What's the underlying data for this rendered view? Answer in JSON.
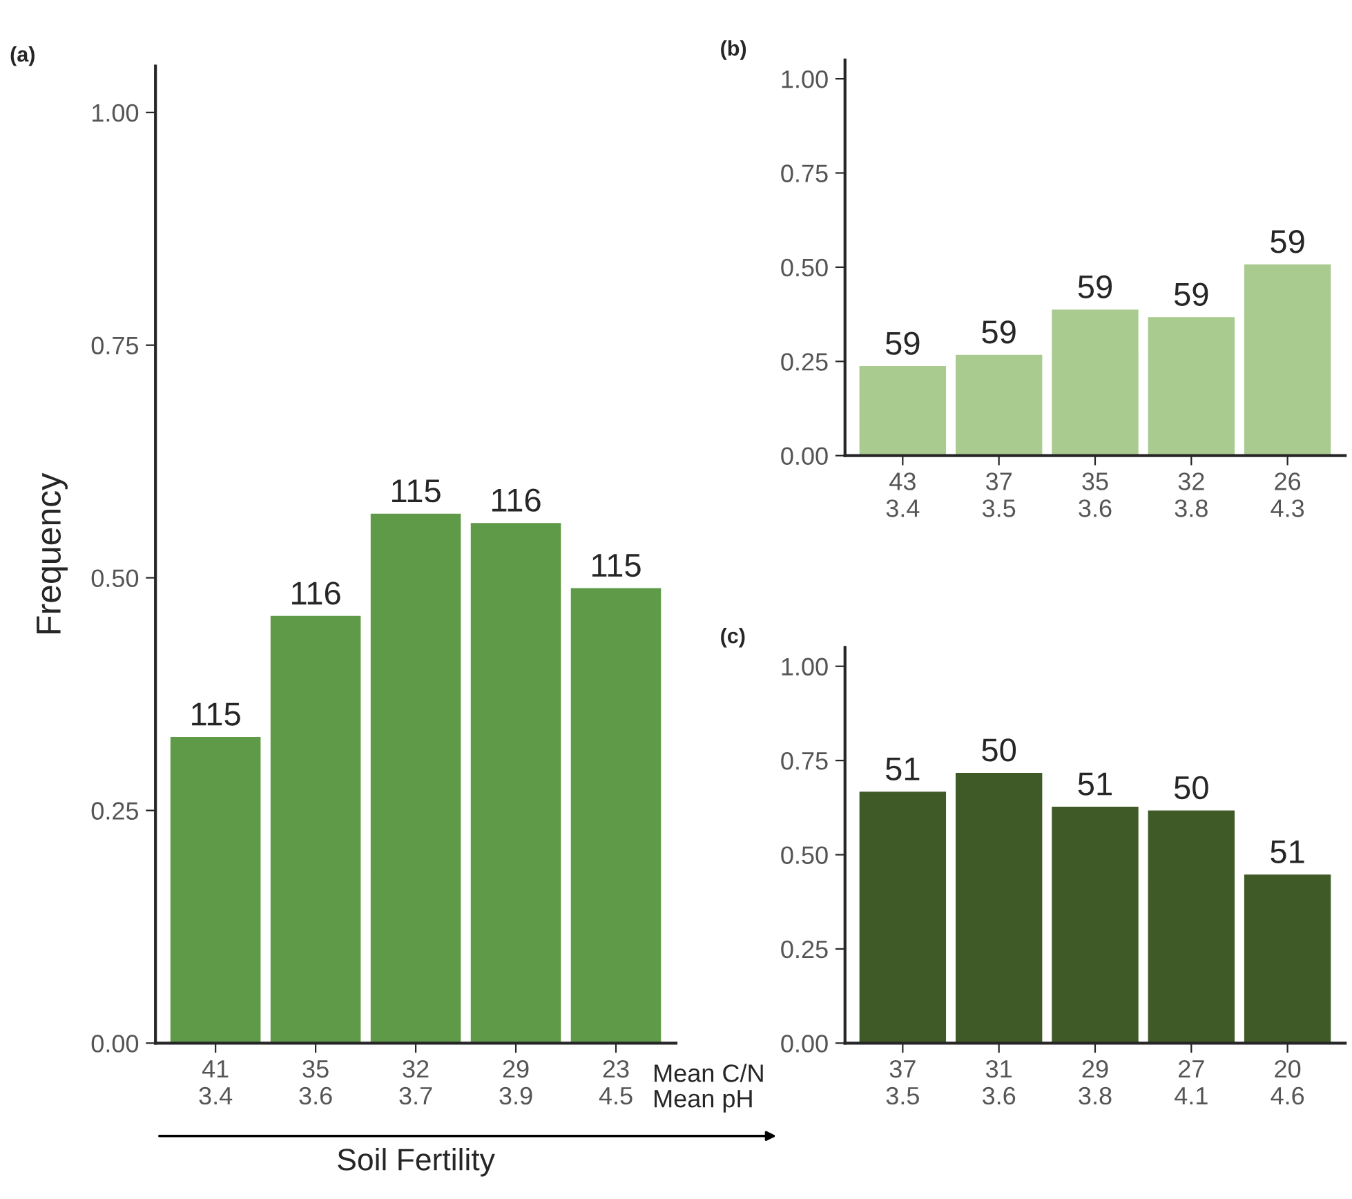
{
  "chart_data": [
    {
      "type": "bar",
      "title": "(a)",
      "ylabel": "Frequency",
      "xlabel": "Soil Fertility",
      "categories": [
        "41\n3.4",
        "35\n3.6",
        "32\n3.7",
        "29\n3.9",
        "23\n4.5"
      ],
      "series": [
        {
          "color": "#5f9a48",
          "values": [
            0.33,
            0.46,
            0.57,
            0.56,
            0.49
          ]
        }
      ],
      "annotations": [
        {
          "text": "115",
          "x": "41\n3.4",
          "y": 0.33
        },
        {
          "text": "116",
          "x": "35\n3.6",
          "y": 0.46
        },
        {
          "text": "115",
          "x": "32\n3.7",
          "y": 0.57
        },
        {
          "text": "116",
          "x": "29\n3.9",
          "y": 0.56
        },
        {
          "text": "115",
          "x": "23\n4.5",
          "y": 0.49
        },
        "Mean C/N",
        "Mean pH"
      ],
      "ylim": [
        0,
        1.05
      ],
      "yticks": [
        {
          "value": 0,
          "label": "0.00"
        },
        {
          "value": 0.25,
          "label": "0.25"
        },
        {
          "value": 0.5,
          "label": "0.50"
        },
        {
          "value": 0.75,
          "label": "0.75"
        },
        {
          "value": 1,
          "label": "1.00"
        }
      ],
      "grid": false,
      "legend": false
    },
    {
      "type": "bar",
      "title": "(b)",
      "categories": [
        "43\n3.4",
        "37\n3.5",
        "35\n3.6",
        "32\n3.8",
        "26\n4.3"
      ],
      "series": [
        {
          "color": "#a9cb8f",
          "values": [
            0.24,
            0.27,
            0.39,
            0.37,
            0.51
          ]
        }
      ],
      "annotations": [
        {
          "text": "59",
          "x": "43\n3.4",
          "y": 0.24
        },
        {
          "text": "59",
          "x": "37\n3.5",
          "y": 0.27
        },
        {
          "text": "59",
          "x": "35\n3.6",
          "y": 0.39
        },
        {
          "text": "59",
          "x": "32\n3.8",
          "y": 0.37
        },
        {
          "text": "59",
          "x": "26\n4.3",
          "y": 0.51
        }
      ],
      "ylim": [
        0,
        1.05
      ],
      "yticks": [
        {
          "value": 0,
          "label": "0.00"
        },
        {
          "value": 0.25,
          "label": "0.25"
        },
        {
          "value": 0.5,
          "label": "0.50"
        },
        {
          "value": 0.75,
          "label": "0.75"
        },
        {
          "value": 1,
          "label": "1.00"
        }
      ],
      "grid": false,
      "legend": false
    },
    {
      "type": "bar",
      "title": "(c)",
      "categories": [
        "37\n3.5",
        "31\n3.6",
        "29\n3.8",
        "27\n4.1",
        "20\n4.6"
      ],
      "series": [
        {
          "color": "#3f5a27",
          "values": [
            0.67,
            0.72,
            0.63,
            0.62,
            0.45
          ]
        }
      ],
      "annotations": [
        {
          "text": "51",
          "x": "37\n3.5",
          "y": 0.67
        },
        {
          "text": "50",
          "x": "31\n3.6",
          "y": 0.72
        },
        {
          "text": "51",
          "x": "29\n3.8",
          "y": 0.63
        },
        {
          "text": "50",
          "x": "27\n4.1",
          "y": 0.62
        },
        {
          "text": "51",
          "x": "20\n4.6",
          "y": 0.45
        }
      ],
      "ylim": [
        0,
        1.05
      ],
      "yticks": [
        {
          "value": 0,
          "label": "0.00"
        },
        {
          "value": 0.25,
          "label": "0.25"
        },
        {
          "value": 0.5,
          "label": "0.50"
        },
        {
          "value": 0.75,
          "label": "0.75"
        },
        {
          "value": 1,
          "label": "1.00"
        }
      ],
      "grid": false,
      "legend": false
    }
  ]
}
